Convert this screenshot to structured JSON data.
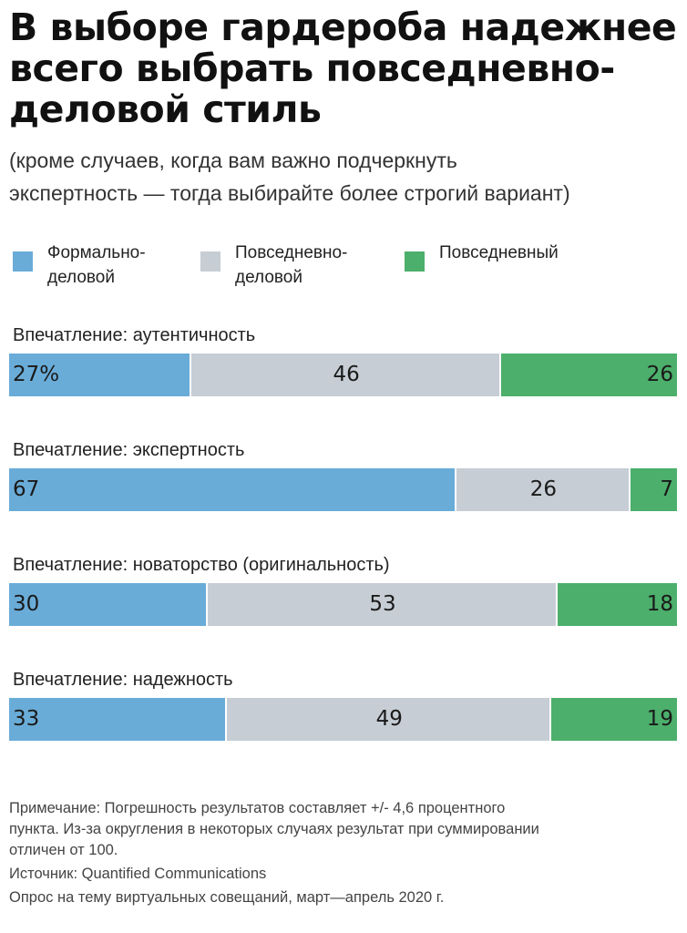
{
  "title_lines": [
    "В выборе гардероба надежнее",
    "всего выбрать повседневно-",
    "деловой стиль"
  ],
  "subtitle_lines": [
    "(кроме случаев, когда вам важно подчеркнуть",
    "экспертность — тогда выбирайте более строгий вариант)"
  ],
  "legend": [
    {
      "label_lines": [
        "Формально-",
        "деловой"
      ],
      "color": "#6aacd8"
    },
    {
      "label_lines": [
        "Повседневно-",
        "деловой"
      ],
      "color": "#c6cdd4"
    },
    {
      "label_lines": [
        "Повседневный"
      ],
      "color": "#4caf6b"
    }
  ],
  "notes": {
    "note_lines": [
      "Примечание: Погрешность результатов составляет +/- 4,6 процентного",
      "пункта. Из-за округления в некоторых случаях результат при суммировании",
      "отличен от 100."
    ],
    "source": "Источник: Quantified Communications",
    "survey": "Опрос на тему виртуальных совещаний, март—апрель 2020 г."
  },
  "chart_data": {
    "type": "bar",
    "orientation": "horizontal",
    "stacked": true,
    "unit": "%",
    "categories": [
      "Впечатление: аутентичность",
      "Впечатление: экспертность",
      "Впечатление: новаторство (оригинальность)",
      "Впечатление: надежность"
    ],
    "series": [
      {
        "name": "Формально-деловой",
        "color": "#6aacd8",
        "values": [
          27,
          67,
          30,
          33
        ],
        "labels": [
          "27%",
          "67",
          "30",
          "33"
        ]
      },
      {
        "name": "Повседневно-деловой",
        "color": "#c6cdd4",
        "values": [
          46,
          26,
          53,
          49
        ],
        "labels": [
          "46",
          "26",
          "53",
          "49"
        ]
      },
      {
        "name": "Повседневный",
        "color": "#4caf6b",
        "values": [
          26,
          7,
          18,
          19
        ],
        "labels": [
          "26",
          "7",
          "18",
          "19"
        ]
      }
    ]
  }
}
